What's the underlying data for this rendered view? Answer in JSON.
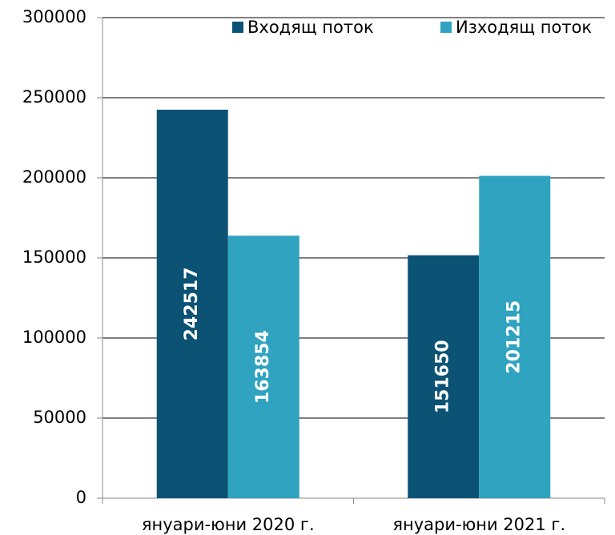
{
  "chart_data": {
    "type": "bar",
    "categories": [
      "януари-юни 2020 г.",
      "януари-юни 2021 г."
    ],
    "series": [
      {
        "name": "Входящ поток",
        "color": "#0b5274",
        "values": [
          242517,
          151650
        ]
      },
      {
        "name": "Изходящ поток",
        "color": "#2fa3c0",
        "values": [
          163854,
          201215
        ]
      }
    ],
    "ylim": [
      0,
      300000
    ],
    "yticks": [
      0,
      50000,
      100000,
      150000,
      200000,
      250000,
      300000
    ],
    "grid": true,
    "legend": "top-right",
    "data_labels": true
  }
}
